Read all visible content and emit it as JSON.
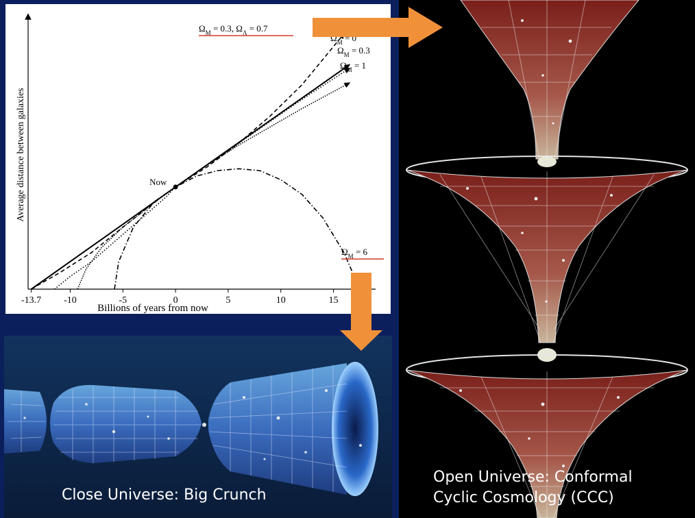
{
  "chart_data": {
    "type": "line",
    "xlabel": "Billions of years from now",
    "ylabel": "Average distance between galaxies",
    "xlim": [
      -14,
      19
    ],
    "x_ticks": [
      "-13.7",
      "-10",
      "-5",
      "0",
      "5",
      "10",
      "15"
    ],
    "x_tick_values": [
      -13.7,
      -10,
      -5,
      0,
      5,
      10,
      15
    ],
    "now_label": "Now",
    "series": [
      {
        "name": "ΩM = 0.3, ΩΛ = 0.7",
        "style": "dashed",
        "x": [
          -13.7,
          -11,
          -8,
          -5,
          -3,
          -1,
          0,
          3,
          6,
          9,
          12,
          16
        ],
        "y": [
          0,
          0.09,
          0.2,
          0.34,
          0.43,
          0.52,
          0.56,
          0.67,
          0.8,
          0.95,
          1.12,
          1.4
        ]
      },
      {
        "name": "ΩM = 0",
        "style": "solid",
        "x": [
          -13.7,
          0,
          16.5
        ],
        "y": [
          0,
          0.56,
          1.23
        ]
      },
      {
        "name": "ΩM = 0.3",
        "style": "dotted",
        "x": [
          -11.5,
          -10,
          -8,
          -5,
          -3,
          -1,
          0,
          3,
          6,
          9,
          12,
          16.5
        ],
        "y": [
          0,
          0.07,
          0.15,
          0.3,
          0.4,
          0.5,
          0.56,
          0.68,
          0.8,
          0.92,
          1.04,
          1.21
        ]
      },
      {
        "name": "ΩM = 1",
        "style": "densely-dotted",
        "x": [
          -9.3,
          -8.5,
          -7,
          -5,
          -3,
          -1,
          0,
          3,
          6,
          9,
          12,
          16.5
        ],
        "y": [
          0,
          0.11,
          0.23,
          0.34,
          0.43,
          0.52,
          0.56,
          0.68,
          0.79,
          0.89,
          0.99,
          1.13
        ]
      },
      {
        "name": "ΩM = 6",
        "style": "dash-dot",
        "x": [
          -5.8,
          -5.4,
          -4,
          -2,
          0,
          2,
          4,
          6,
          8,
          10,
          12,
          14,
          16,
          17.2
        ],
        "y": [
          0,
          0.15,
          0.34,
          0.48,
          0.56,
          0.62,
          0.65,
          0.66,
          0.65,
          0.6,
          0.52,
          0.39,
          0.2,
          0.04
        ]
      }
    ]
  },
  "captions": {
    "left": "Close Universe: Big Crunch",
    "right_line1": "Open Universe: Conformal",
    "right_line2": "Cyclic Cosmology (CCC)"
  },
  "colors": {
    "background": "#0b1f5c",
    "arrow": "#f0913a",
    "underline": "#d23a2a",
    "funnel": "#8a2a22"
  }
}
